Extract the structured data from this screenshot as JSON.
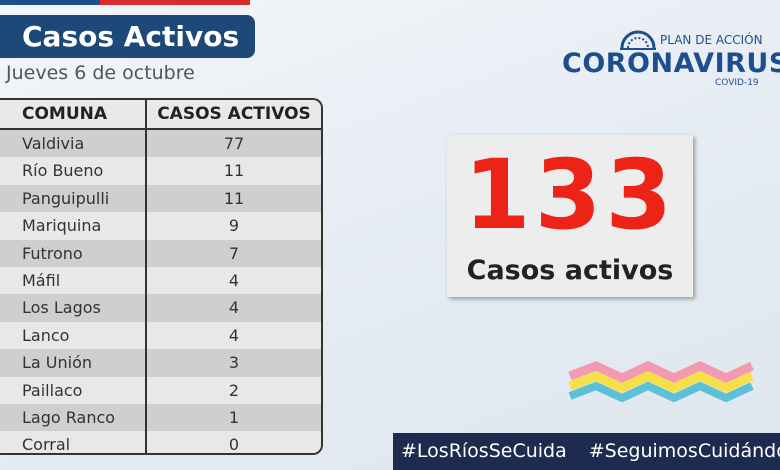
{
  "header": {
    "title": "Casos Activos",
    "date": "Jueves 6 de octubre"
  },
  "logo": {
    "tagline": "PLAN DE ACCIÓN",
    "name": "CORONAVIRUS",
    "sub": "COVID-19"
  },
  "table": {
    "columns": [
      "COMUNA",
      "CASOS ACTIVOS"
    ],
    "rows": [
      [
        "Valdivia",
        77
      ],
      [
        "Río Bueno",
        11
      ],
      [
        "Panguipulli",
        11
      ],
      [
        "Mariquina",
        9
      ],
      [
        "Futrono",
        7
      ],
      [
        "Máfil",
        4
      ],
      [
        "Los Lagos",
        4
      ],
      [
        "Lanco",
        4
      ],
      [
        "La Unión",
        3
      ],
      [
        "Paillaco",
        2
      ],
      [
        "Lago Ranco",
        1
      ],
      [
        "Corral",
        0
      ]
    ]
  },
  "total": {
    "value": 133,
    "label": "Casos activos"
  },
  "hashtags": [
    "#LosRíosSeCuida",
    "#SeguimosCuidándonos"
  ]
}
